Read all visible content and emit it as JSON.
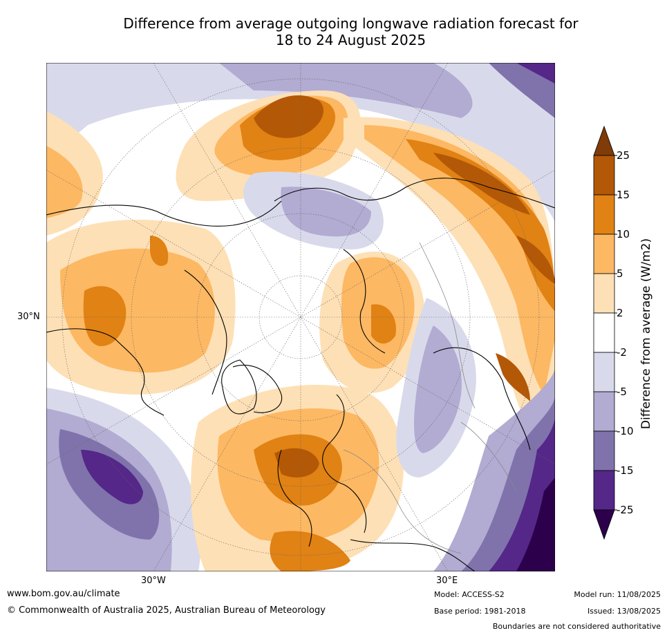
{
  "title": {
    "line1": "Difference from average outgoing longwave radiation forecast for",
    "line2": "18 to 24 August 2025"
  },
  "axis_labels": {
    "lat_30n": "30°N",
    "lon_30w": "30°W",
    "lon_30e": "30°E"
  },
  "colorbar": {
    "title": "Difference from average (W/m2)",
    "ticks": [
      "25",
      "15",
      "10",
      "5",
      "2",
      "-2",
      "-5",
      "-10",
      "-15",
      "-25"
    ],
    "colors": [
      "#7f3b08",
      "#b35806",
      "#e08214",
      "#fdb863",
      "#fee0b6",
      "#ffffff",
      "#d8daeb",
      "#b2abd2",
      "#8073ac",
      "#542788",
      "#2d004b"
    ]
  },
  "footer": {
    "website": "www.bom.gov.au/climate",
    "copyright": "© Commonwealth of Australia 2025, Australian Bureau of Meteorology",
    "model": "Model: ACCESS-S2",
    "base_period": "Base period: 1981-2018",
    "model_run": "Model run: 11/08/2025",
    "issued": "Issued: 13/08/2025",
    "disclaimer": "Boundaries are not considered authoritative"
  }
}
